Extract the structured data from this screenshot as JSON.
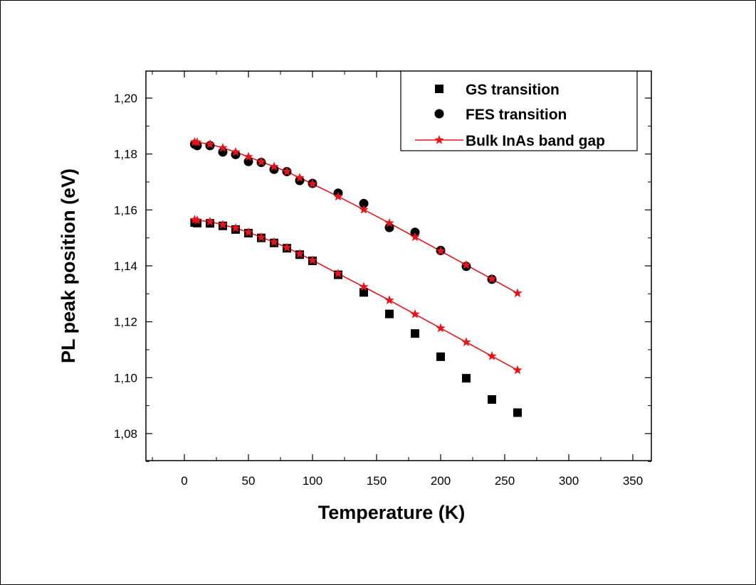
{
  "chart_data": {
    "type": "scatter",
    "xlabel": "Temperature (K)",
    "ylabel": "PL peak position (eV)",
    "xlim": [
      -30,
      350
    ],
    "ylim": [
      1.07,
      1.21
    ],
    "xticks": [
      0,
      50,
      100,
      150,
      200,
      250,
      300,
      350
    ],
    "xtick_labels": [
      "0",
      "50",
      "100",
      "150",
      "200",
      "250",
      "300",
      "350"
    ],
    "yticks": [
      1.08,
      1.1,
      1.12,
      1.14,
      1.16,
      1.18,
      1.2
    ],
    "ytick_labels": [
      "1,08",
      "1,10",
      "1,12",
      "1,14",
      "1,16",
      "1,18",
      "1,20"
    ],
    "legend_position": "top-right",
    "grid": false,
    "series": [
      {
        "name": "GS transition",
        "marker": "square",
        "color": "#000000",
        "x": [
          8,
          10,
          20,
          30,
          40,
          50,
          60,
          70,
          80,
          90,
          100,
          120,
          140,
          160,
          180,
          200,
          220,
          240,
          260
        ],
        "y": [
          1.1555,
          1.1553,
          1.1552,
          1.1543,
          1.153,
          1.1517,
          1.15,
          1.1482,
          1.1463,
          1.144,
          1.1418,
          1.1368,
          1.1305,
          1.1228,
          1.1158,
          1.1075,
          1.0998,
          1.0922,
          1.0875
        ]
      },
      {
        "name": "FES transition",
        "marker": "circle",
        "color": "#000000",
        "x": [
          8,
          10,
          20,
          30,
          40,
          50,
          60,
          70,
          80,
          90,
          100,
          120,
          140,
          160,
          180,
          200,
          220,
          240
        ],
        "y": [
          1.1835,
          1.183,
          1.183,
          1.1807,
          1.1798,
          1.1773,
          1.177,
          1.1745,
          1.1737,
          1.1705,
          1.1695,
          1.166,
          1.1623,
          1.1537,
          1.152,
          1.1455,
          1.1398,
          1.1352
        ]
      },
      {
        "name": "Bulk InAs band gap",
        "marker": "star-line",
        "color": "#e8141b",
        "x": [
          8,
          10,
          20,
          30,
          40,
          50,
          60,
          70,
          80,
          90,
          100,
          120,
          140,
          160,
          180,
          200,
          220,
          240,
          260
        ],
        "y": [
          1.1843,
          1.1842,
          1.1835,
          1.1822,
          1.1807,
          1.179,
          1.1772,
          1.1755,
          1.1737,
          1.1715,
          1.1693,
          1.1648,
          1.1601,
          1.1553,
          1.1503,
          1.1453,
          1.1403,
          1.1353,
          1.1302
        ]
      },
      {
        "name": "",
        "marker": "star-line",
        "color": "#e8141b",
        "x": [
          8,
          10,
          20,
          30,
          40,
          50,
          60,
          70,
          80,
          90,
          100,
          120,
          140,
          160,
          180,
          200,
          220,
          240,
          260
        ],
        "y": [
          1.1565,
          1.1563,
          1.1558,
          1.1547,
          1.1535,
          1.152,
          1.1502,
          1.1485,
          1.1465,
          1.1443,
          1.142,
          1.1372,
          1.1325,
          1.1277,
          1.1227,
          1.1177,
          1.1127,
          1.1077,
          1.1027
        ]
      }
    ]
  }
}
